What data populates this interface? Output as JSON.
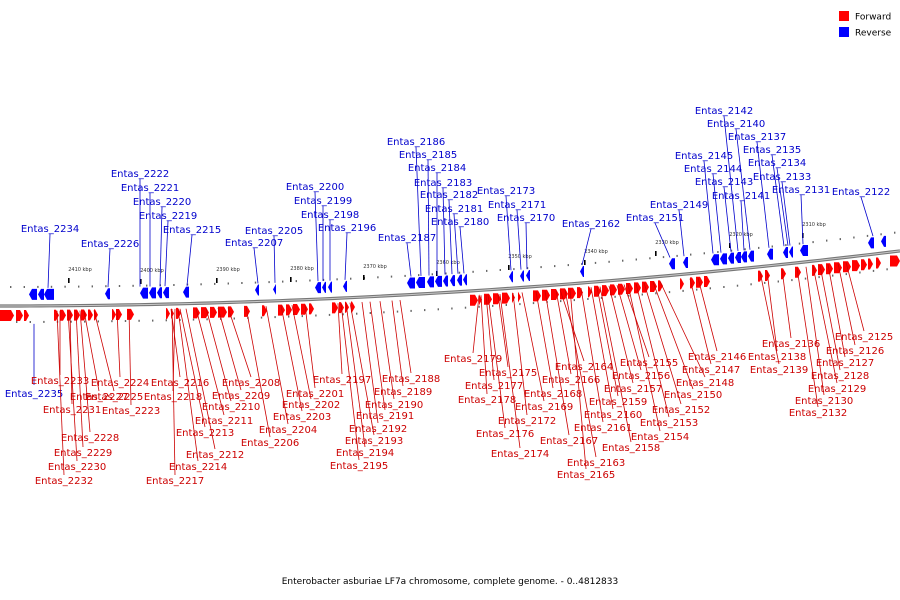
{
  "colors": {
    "forward": "#ff0000",
    "reverse": "#0000ff",
    "forward_label": "#cc0000",
    "reverse_label": "#0000cc"
  },
  "legend": [
    {
      "label": "Forward",
      "color": "#ff0000"
    },
    {
      "label": "Reverse",
      "color": "#0000ff"
    }
  ],
  "caption": "Enterobacter asburiae LF7a chromosome, complete genome. - 0..4812833",
  "scale_ticks": [
    "2410 kbp",
    "2400 kbp",
    "2390 kbp",
    "2380 kbp",
    "2370 kbp",
    "2360 kbp",
    "2350 kbp",
    "2340 kbp",
    "2330 kbp",
    "2320 kbp",
    "2310 kbp"
  ],
  "reverse_genes": [
    "Entas_2234",
    "Entas_2226",
    "Entas_2222",
    "Entas_2221",
    "Entas_2220",
    "Entas_2219",
    "Entas_2215",
    "Entas_2207",
    "Entas_2205",
    "Entas_2200",
    "Entas_2199",
    "Entas_2198",
    "Entas_2196",
    "Entas_2187",
    "Entas_2186",
    "Entas_2185",
    "Entas_2184",
    "Entas_2183",
    "Entas_2182",
    "Entas_2181",
    "Entas_2180",
    "Entas_2173",
    "Entas_2171",
    "Entas_2170",
    "Entas_2162",
    "Entas_2151",
    "Entas_2149",
    "Entas_2145",
    "Entas_2144",
    "Entas_2143",
    "Entas_2142",
    "Entas_2141",
    "Entas_2140",
    "Entas_2137",
    "Entas_2135",
    "Entas_2134",
    "Entas_2133",
    "Entas_2131",
    "Entas_2122",
    "Entas_2235"
  ],
  "forward_genes": [
    "Entas_2233",
    "Entas_2231",
    "Entas_2227",
    "Entas_2225",
    "Entas_2224",
    "Entas_2223",
    "Entas_2228",
    "Entas_2229",
    "Entas_2230",
    "Entas_2232",
    "Entas_2216",
    "Entas_2218",
    "Entas_2213",
    "Entas_2212",
    "Entas_2214",
    "Entas_2217",
    "Entas_2211",
    "Entas_2210",
    "Entas_2209",
    "Entas_2208",
    "Entas_2206",
    "Entas_2204",
    "Entas_2203",
    "Entas_2202",
    "Entas_2201",
    "Entas_2197",
    "Entas_2193",
    "Entas_2194",
    "Entas_2195",
    "Entas_2192",
    "Entas_2191",
    "Entas_2190",
    "Entas_2189",
    "Entas_2188",
    "Entas_2179",
    "Entas_2177",
    "Entas_2178",
    "Entas_2176",
    "Entas_2175",
    "Entas_2174",
    "Entas_2172",
    "Entas_2169",
    "Entas_2168",
    "Entas_2167",
    "Entas_2166",
    "Entas_2164",
    "Entas_2163",
    "Entas_2165",
    "Entas_2161",
    "Entas_2160",
    "Entas_2159",
    "Entas_2158",
    "Entas_2157",
    "Entas_2156",
    "Entas_2155",
    "Entas_2154",
    "Entas_2153",
    "Entas_2152",
    "Entas_2150",
    "Entas_2148",
    "Entas_2147",
    "Entas_2146",
    "Entas_2139",
    "Entas_2138",
    "Entas_2136",
    "Entas_2132",
    "Entas_2130",
    "Entas_2129",
    "Entas_2128",
    "Entas_2127",
    "Entas_2126",
    "Entas_2125"
  ]
}
